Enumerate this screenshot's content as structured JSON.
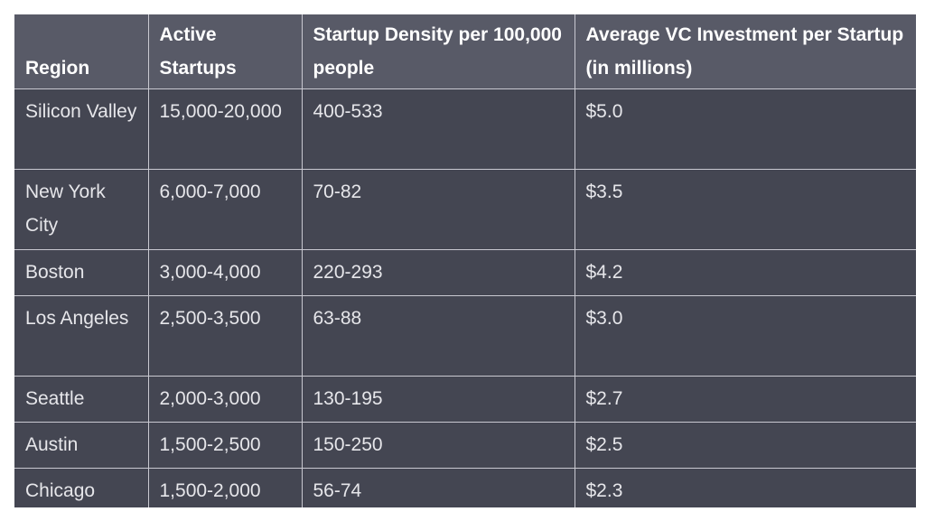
{
  "table": {
    "headers": [
      "Region",
      "Active Startups",
      "Startup Density per 100,000 people",
      "Average VC Investment per Startup (in millions)"
    ],
    "rows": [
      [
        "Silicon Valley",
        "15,000-20,000",
        "400-533",
        "$5.0"
      ],
      [
        "New York City",
        "6,000-7,000",
        "70-82",
        "$3.5"
      ],
      [
        "Boston",
        "3,000-4,000",
        "220-293",
        "$4.2"
      ],
      [
        "Los Angeles",
        "2,500-3,500",
        "63-88",
        "$3.0"
      ],
      [
        "Seattle",
        "2,000-3,000",
        "130-195",
        "$2.7"
      ],
      [
        "Austin",
        "1,500-2,500",
        "150-250",
        "$2.5"
      ],
      [
        "Chicago",
        "1,500-2,000",
        "56-74",
        "$2.3"
      ]
    ]
  },
  "colors": {
    "header_bg": "#585a67",
    "cell_bg": "#444652",
    "grid_line": "#c9c9d1",
    "text": "#e6e6ea"
  }
}
